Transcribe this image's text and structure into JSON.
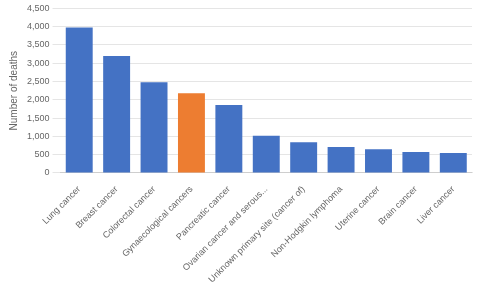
{
  "chart_data": {
    "type": "bar",
    "categories": [
      "Lung cancer",
      "Breast cancer",
      "Colorectal cancer",
      "Gynaecological cancers",
      "Pancreatic cancer",
      "Ovarian cancer and serous...",
      "Unknown primary site (cancer of)",
      "Non-Hodgkin lymphoma",
      "Uterine cancer",
      "Brain cancer",
      "Liver cancer"
    ],
    "values": [
      3980,
      3200,
      2480,
      2180,
      1860,
      1020,
      840,
      710,
      650,
      575,
      550
    ],
    "colors": [
      "#4472C4",
      "#4472C4",
      "#4472C4",
      "#ED7D31",
      "#4472C4",
      "#4472C4",
      "#4472C4",
      "#4472C4",
      "#4472C4",
      "#4472C4",
      "#4472C4"
    ],
    "ylabel": "Number of deaths",
    "ylim": [
      0,
      4500
    ],
    "yticks": [
      0,
      500,
      {
        "value": 1000,
        "label": "1,000"
      },
      {
        "value": 1500,
        "label": "1,500"
      },
      {
        "value": 2000,
        "label": "2,000"
      },
      {
        "value": 2500,
        "label": "2,500"
      },
      {
        "value": 3000,
        "label": "3,000"
      },
      {
        "value": 3500,
        "label": "3,500"
      },
      {
        "value": 4000,
        "label": "4,000"
      },
      {
        "value": 4500,
        "label": "4,500"
      }
    ],
    "grid": true
  }
}
